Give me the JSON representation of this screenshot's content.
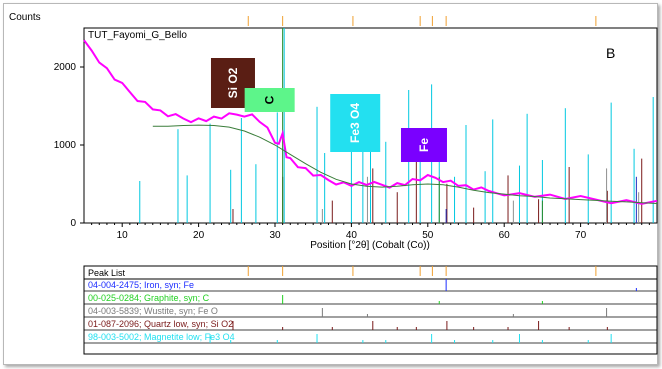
{
  "chart_data": {
    "type": "line",
    "ylabel": "Counts",
    "sample_name": "TUT_Fayomi_G_Bello",
    "panel_letter": "B",
    "xlabel": "Position [°2θ] (Cobalt (Co))",
    "xlim": [
      5,
      80
    ],
    "ylim": [
      0,
      2500
    ],
    "x_ticks": [
      10,
      20,
      30,
      40,
      50,
      60,
      70
    ],
    "y_ticks": [
      0,
      1000,
      2000
    ],
    "series": [
      {
        "color": "#ff00ff",
        "x": [
          5,
          6,
          7,
          8,
          9,
          10,
          11,
          12,
          13,
          14,
          15,
          16,
          17,
          18,
          19,
          20,
          21,
          22,
          23,
          24,
          25,
          26,
          27,
          28,
          29,
          30,
          30.5,
          31,
          31.5,
          32,
          33,
          34,
          35,
          36,
          37,
          38,
          39,
          40,
          41,
          42,
          43,
          44,
          45,
          46,
          47,
          48,
          49,
          50,
          51,
          52,
          53,
          54,
          55,
          56,
          57,
          58,
          60,
          62,
          64,
          66,
          68,
          70,
          72,
          74,
          76,
          78,
          80
        ],
        "y": [
          2380,
          2200,
          2080,
          1960,
          1850,
          1760,
          1680,
          1600,
          1540,
          1480,
          1420,
          1380,
          1360,
          1340,
          1330,
          1330,
          1330,
          1340,
          1350,
          1370,
          1390,
          1400,
          1380,
          1320,
          1200,
          1040,
          980,
          1150,
          880,
          820,
          740,
          680,
          620,
          580,
          550,
          530,
          510,
          500,
          500,
          500,
          490,
          490,
          490,
          500,
          510,
          540,
          560,
          580,
          580,
          560,
          530,
          500,
          460,
          440,
          420,
          410,
          390,
          370,
          360,
          340,
          320,
          310,
          300,
          290,
          280,
          270,
          260
        ]
      },
      {
        "color": "#3a7d3a",
        "x": [
          14,
          16,
          18,
          20,
          22,
          24,
          26,
          28,
          30,
          32,
          34,
          36,
          38,
          40,
          42,
          44,
          46,
          48,
          50,
          52,
          54,
          56,
          58,
          60,
          62,
          64,
          66,
          68,
          70,
          72,
          74,
          76,
          78,
          80
        ],
        "y": [
          1240,
          1240,
          1250,
          1255,
          1250,
          1230,
          1180,
          1100,
          1000,
          880,
          760,
          650,
          560,
          500,
          470,
          460,
          470,
          490,
          500,
          490,
          460,
          420,
          390,
          370,
          350,
          340,
          320,
          310,
          300,
          290,
          280,
          270,
          260,
          250
        ]
      }
    ],
    "reference_lines": [
      {
        "color": "#00c8e0",
        "positions": [
          12.3,
          17.3,
          18.5,
          21.5,
          24.2,
          25.6,
          27.5,
          30.3,
          31.2,
          35.5,
          36.5,
          40.0,
          41.5,
          42.5,
          44.5,
          47.5,
          49.0,
          50.5,
          51.5,
          53.5,
          55.0,
          57.5,
          58.5,
          62.0,
          63.0,
          65.0,
          68.0,
          71.0,
          74.0,
          77.0,
          79.5
        ]
      },
      {
        "color": "#7a1a1a",
        "positions": [
          24.5,
          31.0,
          37.5,
          42.8,
          46.0,
          48.5,
          52.5,
          56.0,
          60.5,
          64.5,
          68.5,
          73.5,
          78.0
        ]
      },
      {
        "color": "#909090",
        "positions": [
          36.2,
          42.1,
          61.2,
          73.4,
          77.6
        ]
      },
      {
        "color": "#2a8a2a",
        "positions": [
          31.0,
          51.5,
          65.0
        ]
      },
      {
        "color": "#2030c0",
        "positions": [
          52.4,
          77.3
        ]
      }
    ],
    "top_markers": [
      26.5,
      31.0,
      40.2,
      49.0,
      50.6,
      52.4,
      72.0
    ],
    "phase_labels": [
      {
        "text": "Si O2",
        "color": "#5a1e14",
        "x": 24.5
      },
      {
        "text": "C",
        "color": "#5df58a",
        "x": 29.3
      },
      {
        "text": "Fe3 O4",
        "color": "#23e0f0",
        "x": 40.5
      },
      {
        "text": "Fe",
        "color": "#7a00ff",
        "x": 49.5
      }
    ],
    "peak_list": {
      "title": "Peak List",
      "rows": [
        {
          "text": "04-004-2475; Iron, syn; Fe",
          "color": "#1c2cff"
        },
        {
          "text": "00-025-0284; Graphite, syn; C",
          "color": "#22d022"
        },
        {
          "text": "04-003-5839; Wustite, syn; Fe O",
          "color": "#7a7a7a"
        },
        {
          "text": "01-087-2096; Quartz low, syn; Si O2",
          "color": "#7a1a1a"
        },
        {
          "text": "98-003-5002; Magnetite low; Fe3 O4",
          "color": "#22e0f0"
        }
      ]
    }
  }
}
